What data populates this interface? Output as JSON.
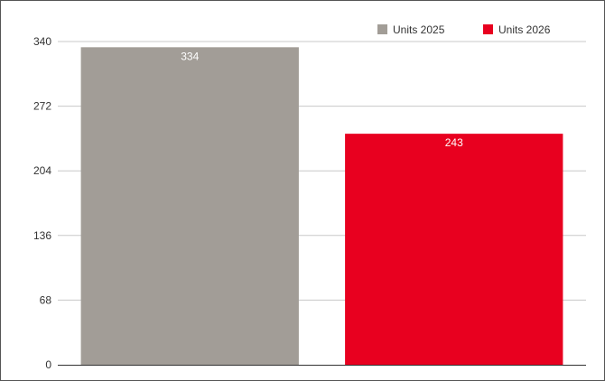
{
  "chart_data": {
    "type": "bar",
    "title": "",
    "xlabel": "",
    "ylabel": "",
    "ylim": [
      0,
      340
    ],
    "yticks": [
      0,
      68,
      136,
      204,
      272,
      340
    ],
    "grid": "horizontal",
    "legend_position": "top-right",
    "series": [
      {
        "name": "Units 2025",
        "value": 334,
        "color": "#a29d97"
      },
      {
        "name": "Units 2026",
        "value": 243,
        "color": "#e8001f"
      }
    ]
  }
}
